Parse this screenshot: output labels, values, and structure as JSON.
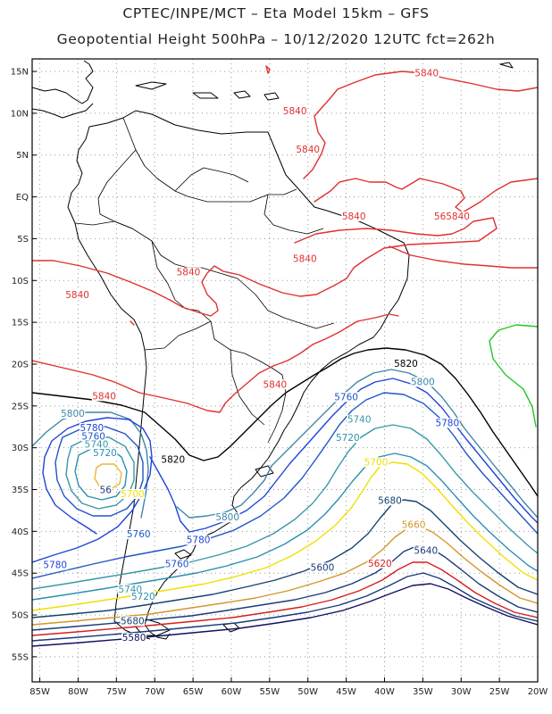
{
  "header": {
    "line1": "CPTEC/INPE/MCT –  Eta Model 15km – GFS",
    "line2": "Geopotential Height 500hPa – 10/12/2020 12UTC fct=262h"
  },
  "map": {
    "lat_labels": [
      "15N",
      "10N",
      "5N",
      "EQ",
      "5S",
      "10S",
      "15S",
      "20S",
      "25S",
      "30S",
      "35S",
      "40S",
      "45S",
      "50S",
      "55S"
    ],
    "lon_labels": [
      "85W",
      "80W",
      "75W",
      "70W",
      "65W",
      "60W",
      "55W",
      "50W",
      "45W",
      "40W",
      "35W",
      "30W",
      "25W",
      "20W"
    ],
    "lon_range": [
      -86,
      -20
    ],
    "lat_range": [
      16.5,
      -58
    ],
    "grid": "dotted",
    "contour_unit": "gpm",
    "contour_colors": {
      "5560": "#b01818",
      "5580": "#101060",
      "5600": "#1a3a7a",
      "5620": "#d81e1e",
      "5640": "#1a3a7a",
      "5660": "#d4962a",
      "5680": "#17416f",
      "5700": "#f0e000",
      "5720": "#2b8fb0",
      "5740": "#3898a8",
      "5760": "#1f55c8",
      "5780": "#2044d8",
      "5800": "#3f85a8",
      "5820": "#000000",
      "5840": "#e03030",
      "5860": "#20c820"
    },
    "contour_labels": [
      {
        "text": "5840",
        "color": "#e03030",
        "lon": -34.5,
        "lat": 14.5
      },
      {
        "text": "5840",
        "color": "#e03030",
        "lon": -51.7,
        "lat": 10.0
      },
      {
        "text": "5840",
        "color": "#e03030",
        "lon": -50.0,
        "lat": 5.4
      },
      {
        "text": "5840",
        "color": "#e03030",
        "lon": -44.0,
        "lat": -2.6
      },
      {
        "text": "565840",
        "color": "#e03030",
        "lon": -31.2,
        "lat": -2.6
      },
      {
        "text": "5840",
        "color": "#e03030",
        "lon": -50.4,
        "lat": -7.7
      },
      {
        "text": "5840",
        "color": "#e03030",
        "lon": -65.6,
        "lat": -9.3
      },
      {
        "text": "5840",
        "color": "#e03030",
        "lon": -80.1,
        "lat": -12.0
      },
      {
        "text": "5840",
        "color": "#e03030",
        "lon": -76.6,
        "lat": -24.1
      },
      {
        "text": "5840",
        "color": "#e03030",
        "lon": -54.3,
        "lat": -22.7
      },
      {
        "text": "5820",
        "color": "#000000",
        "lon": -37.2,
        "lat": -20.2
      },
      {
        "text": "5800",
        "color": "#3f85a8",
        "lon": -35.0,
        "lat": -22.4
      },
      {
        "text": "5760",
        "color": "#1f55c8",
        "lon": -45.0,
        "lat": -24.2
      },
      {
        "text": "5780",
        "color": "#2044d8",
        "lon": -31.8,
        "lat": -27.3
      },
      {
        "text": "5740",
        "color": "#3898a8",
        "lon": -43.3,
        "lat": -26.9
      },
      {
        "text": "5720",
        "color": "#2b8fb0",
        "lon": -44.8,
        "lat": -29.1
      },
      {
        "text": "5700",
        "color": "#f0e000",
        "lon": -41.1,
        "lat": -32.0
      },
      {
        "text": "5680",
        "color": "#17416f",
        "lon": -39.3,
        "lat": -36.6
      },
      {
        "text": "5660",
        "color": "#d4962a",
        "lon": -36.2,
        "lat": -39.5
      },
      {
        "text": "5640",
        "color": "#1a3a7a",
        "lon": -34.6,
        "lat": -42.6
      },
      {
        "text": "5620",
        "color": "#d81e1e",
        "lon": -40.6,
        "lat": -44.1
      },
      {
        "text": "5600",
        "color": "#1a3a7a",
        "lon": -48.1,
        "lat": -44.6
      },
      {
        "text": "5820",
        "color": "#000000",
        "lon": -67.6,
        "lat": -31.7
      },
      {
        "text": "5800",
        "color": "#3f85a8",
        "lon": -80.7,
        "lat": -26.2
      },
      {
        "text": "5780",
        "color": "#2044d8",
        "lon": -78.2,
        "lat": -27.9
      },
      {
        "text": "5760",
        "color": "#1f55c8",
        "lon": -78.0,
        "lat": -28.9
      },
      {
        "text": "5740",
        "color": "#3898a8",
        "lon": -77.6,
        "lat": -29.9
      },
      {
        "text": "5720",
        "color": "#2b8fb0",
        "lon": -76.5,
        "lat": -30.9
      },
      {
        "text": "5700",
        "color": "#f0e000",
        "lon": -72.9,
        "lat": -35.8
      },
      {
        "text": "56",
        "color": "#1a3a7a",
        "lon": -76.4,
        "lat": -35.3
      },
      {
        "text": "5800",
        "color": "#3f85a8",
        "lon": -60.5,
        "lat": -38.6
      },
      {
        "text": "5760",
        "color": "#1f55c8",
        "lon": -72.1,
        "lat": -40.6
      },
      {
        "text": "5780",
        "color": "#2044d8",
        "lon": -64.3,
        "lat": -41.3
      },
      {
        "text": "5780",
        "color": "#2044d8",
        "lon": -83.0,
        "lat": -44.3
      },
      {
        "text": "5760",
        "color": "#1f55c8",
        "lon": -67.1,
        "lat": -44.2
      },
      {
        "text": "5740",
        "color": "#3898a8",
        "lon": -73.2,
        "lat": -47.2
      },
      {
        "text": "5720",
        "color": "#2b8fb0",
        "lon": -71.5,
        "lat": -48.1
      },
      {
        "text": "5680",
        "color": "#17416f",
        "lon": -72.9,
        "lat": -51.0
      },
      {
        "text": "5580",
        "color": "#101060",
        "lon": -72.7,
        "lat": -53.0
      }
    ]
  }
}
